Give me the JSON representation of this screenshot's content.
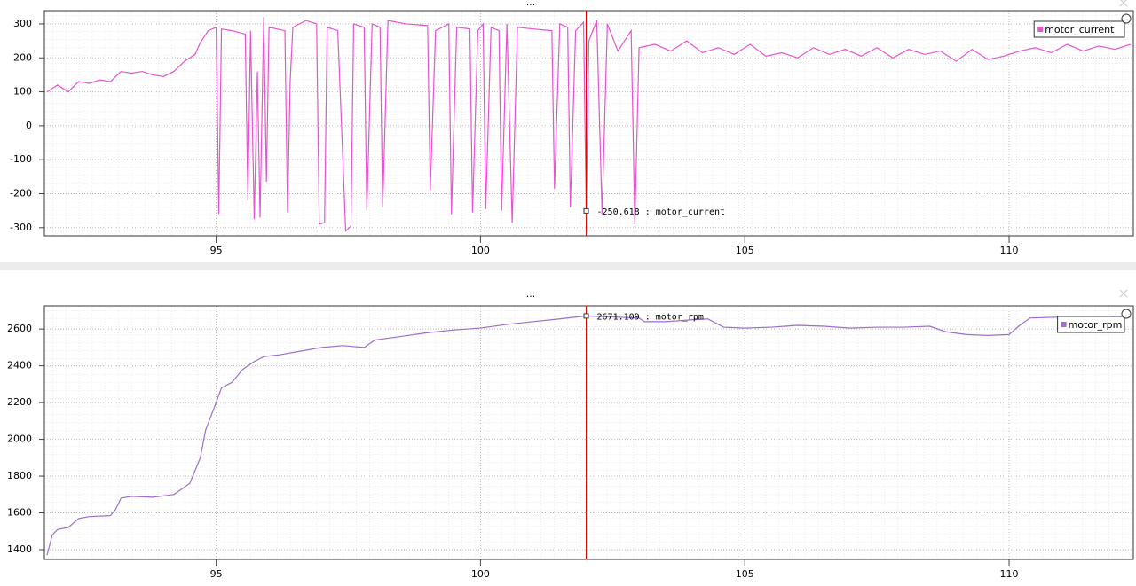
{
  "chart_data": [
    {
      "type": "line",
      "title": "...",
      "x": [
        91.8,
        92.0,
        92.2,
        92.4,
        92.6,
        92.8,
        93.0,
        93.2,
        93.4,
        93.6,
        93.8,
        94.0,
        94.2,
        94.4,
        94.6,
        94.7,
        94.85,
        95.0,
        95.05,
        95.1,
        95.3,
        95.55,
        95.6,
        95.65,
        95.72,
        95.78,
        95.83,
        95.9,
        95.95,
        96.0,
        96.3,
        96.35,
        96.4,
        96.45,
        96.7,
        96.9,
        96.95,
        97.05,
        97.1,
        97.3,
        97.45,
        97.55,
        97.6,
        97.8,
        97.85,
        97.95,
        98.1,
        98.15,
        98.25,
        98.6,
        99.0,
        99.05,
        99.15,
        99.4,
        99.45,
        99.55,
        99.8,
        99.85,
        99.95,
        100.05,
        100.1,
        100.2,
        100.35,
        100.4,
        100.5,
        100.6,
        100.7,
        101.0,
        101.35,
        101.4,
        101.5,
        101.65,
        101.7,
        101.8,
        101.95,
        102.0,
        102.05,
        102.2,
        102.3,
        102.4,
        102.6,
        102.85,
        102.92,
        103.0,
        103.3,
        103.6,
        103.9,
        104.2,
        104.5,
        104.8,
        105.1,
        105.4,
        105.7,
        106.0,
        106.3,
        106.6,
        106.9,
        107.2,
        107.5,
        107.8,
        108.1,
        108.4,
        108.7,
        109.0,
        109.3,
        109.6,
        109.9,
        110.2,
        110.5,
        110.8,
        111.1,
        111.4,
        111.7,
        112.0,
        112.3
      ],
      "series": [
        {
          "name": "motor_current",
          "color": "#e655cc",
          "values": [
            100,
            120,
            100,
            130,
            125,
            135,
            130,
            160,
            155,
            160,
            150,
            145,
            160,
            190,
            210,
            245,
            280,
            290,
            -260,
            285,
            280,
            270,
            -220,
            280,
            -275,
            160,
            -270,
            320,
            -165,
            290,
            280,
            -255,
            130,
            290,
            310,
            300,
            -290,
            -285,
            290,
            280,
            -310,
            -295,
            300,
            290,
            -250,
            300,
            290,
            -240,
            310,
            300,
            295,
            -190,
            280,
            300,
            -260,
            290,
            285,
            -255,
            280,
            300,
            -245,
            290,
            280,
            -250,
            300,
            -285,
            290,
            285,
            280,
            -185,
            300,
            290,
            -240,
            280,
            305,
            -250.618,
            250,
            310,
            -260,
            300,
            220,
            280,
            -290,
            230,
            240,
            220,
            250,
            215,
            230,
            210,
            240,
            205,
            215,
            200,
            230,
            210,
            225,
            205,
            230,
            200,
            225,
            210,
            220,
            190,
            225,
            195,
            205,
            220,
            230,
            215,
            240,
            220,
            235,
            225,
            240
          ]
        }
      ],
      "xlim": [
        91.75,
        112.35
      ],
      "ylim": [
        -324,
        339
      ],
      "xticks": [
        95,
        100,
        105,
        110
      ],
      "yticks": [
        -300,
        -200,
        -100,
        0,
        100,
        200,
        300
      ],
      "grid": true,
      "legend": "upper right",
      "annotation": {
        "x": 102,
        "y": -250.618,
        "text": "-250.618 : motor_current"
      }
    },
    {
      "type": "line",
      "title": "...",
      "x": [
        91.8,
        91.9,
        92.0,
        92.2,
        92.4,
        92.6,
        93.0,
        93.1,
        93.2,
        93.4,
        93.8,
        94.2,
        94.4,
        94.5,
        94.7,
        94.8,
        95.0,
        95.1,
        95.3,
        95.5,
        95.7,
        95.9,
        96.2,
        96.6,
        97.0,
        97.4,
        97.8,
        98.0,
        98.5,
        99.0,
        99.5,
        100.0,
        100.5,
        101.0,
        101.5,
        102.0,
        102.5,
        103.0,
        103.1,
        103.5,
        104.0,
        104.3,
        104.6,
        105.0,
        105.5,
        106.0,
        106.5,
        107.0,
        107.5,
        108.0,
        108.5,
        108.8,
        109.2,
        109.6,
        110.0,
        110.2,
        110.4,
        111.0,
        111.5,
        112.0,
        112.3
      ],
      "series": [
        {
          "name": "motor_rpm",
          "color": "#9b6fcb",
          "values": [
            1370,
            1480,
            1510,
            1520,
            1570,
            1580,
            1585,
            1620,
            1680,
            1690,
            1685,
            1700,
            1740,
            1760,
            1900,
            2050,
            2200,
            2280,
            2310,
            2380,
            2420,
            2450,
            2460,
            2480,
            2500,
            2510,
            2500,
            2540,
            2560,
            2580,
            2595,
            2605,
            2625,
            2640,
            2655,
            2671.109,
            2665,
            2660,
            2640,
            2640,
            2650,
            2655,
            2610,
            2605,
            2610,
            2620,
            2615,
            2605,
            2610,
            2610,
            2615,
            2585,
            2570,
            2565,
            2570,
            2620,
            2660,
            2665,
            2660,
            2670,
            2665
          ]
        }
      ],
      "xlim": [
        91.75,
        112.35
      ],
      "ylim": [
        1347,
        2726
      ],
      "xticks": [
        95,
        100,
        105,
        110
      ],
      "yticks": [
        1400,
        1600,
        1800,
        2000,
        2200,
        2400,
        2600
      ],
      "grid": true,
      "legend": "upper right",
      "annotation": {
        "x": 102,
        "y": 2671.109,
        "text": "2671.109 : motor_rpm"
      }
    }
  ]
}
